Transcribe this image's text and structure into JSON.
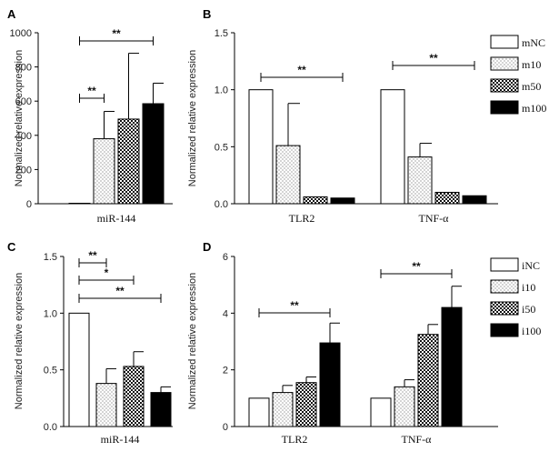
{
  "chart_data": [
    {
      "panel": "A",
      "type": "bar",
      "ylabel": "Normalized relative expression",
      "ylim": [
        0,
        1000
      ],
      "yticks": [
        "0",
        "200",
        "400",
        "600",
        "800",
        "1000"
      ],
      "groups": [
        "miR-144"
      ],
      "series": [
        {
          "name": "mNC",
          "values": [
            1
          ],
          "errors": [
            0
          ]
        },
        {
          "name": "m10",
          "values": [
            380
          ],
          "errors": [
            160
          ]
        },
        {
          "name": "m50",
          "values": [
            495
          ],
          "errors": [
            385
          ]
        },
        {
          "name": "m100",
          "values": [
            585
          ],
          "errors": [
            120
          ]
        }
      ],
      "significance": [
        {
          "label": "**",
          "from": "mNC",
          "to": "m10",
          "group": 0
        },
        {
          "label": "**",
          "from": "mNC",
          "to": "m100",
          "group": 0
        }
      ]
    },
    {
      "panel": "B",
      "type": "bar",
      "ylabel": "Normalized relative expression",
      "ylim": [
        0,
        1.5
      ],
      "yticks": [
        "0.0",
        "0.5",
        "1.0",
        "1.5"
      ],
      "groups": [
        "TLR2",
        "TNF-α"
      ],
      "series": [
        {
          "name": "mNC",
          "values": [
            1.0,
            1.0
          ],
          "errors": [
            0,
            0
          ]
        },
        {
          "name": "m10",
          "values": [
            0.51,
            0.41
          ],
          "errors": [
            0.37,
            0.12
          ]
        },
        {
          "name": "m50",
          "values": [
            0.06,
            0.1
          ],
          "errors": [
            0,
            0
          ]
        },
        {
          "name": "m100",
          "values": [
            0.05,
            0.07
          ],
          "errors": [
            0,
            0
          ]
        }
      ],
      "legend": [
        "mNC",
        "m10",
        "m50",
        "m100"
      ],
      "significance": [
        {
          "label": "**",
          "from": "mNC",
          "to": "m100",
          "group": 0
        },
        {
          "label": "**",
          "from": "mNC",
          "to": "m100",
          "group": 1
        }
      ]
    },
    {
      "panel": "C",
      "type": "bar",
      "ylabel": "Normalized relative expression",
      "ylim": [
        0,
        1.5
      ],
      "yticks": [
        "0.0",
        "0.5",
        "1.0",
        "1.5"
      ],
      "groups": [
        "miR-144"
      ],
      "series": [
        {
          "name": "iNC",
          "values": [
            1.0
          ],
          "errors": [
            0
          ]
        },
        {
          "name": "i10",
          "values": [
            0.38
          ],
          "errors": [
            0.13
          ]
        },
        {
          "name": "i50",
          "values": [
            0.53
          ],
          "errors": [
            0.13
          ]
        },
        {
          "name": "i100",
          "values": [
            0.3
          ],
          "errors": [
            0.05
          ]
        }
      ],
      "significance": [
        {
          "label": "**",
          "from": "iNC",
          "to": "i10",
          "group": 0
        },
        {
          "label": "*",
          "from": "iNC",
          "to": "i50",
          "group": 0
        },
        {
          "label": "**",
          "from": "iNC",
          "to": "i100",
          "group": 0
        }
      ]
    },
    {
      "panel": "D",
      "type": "bar",
      "ylabel": "Normalized relative expression",
      "ylim": [
        0,
        6
      ],
      "yticks": [
        "0",
        "2",
        "4",
        "6"
      ],
      "groups": [
        "TLR2",
        "TNF-α"
      ],
      "series": [
        {
          "name": "iNC",
          "values": [
            1.0,
            1.0
          ],
          "errors": [
            0,
            0
          ]
        },
        {
          "name": "i10",
          "values": [
            1.2,
            1.4
          ],
          "errors": [
            0.25,
            0.25
          ]
        },
        {
          "name": "i50",
          "values": [
            1.55,
            3.25
          ],
          "errors": [
            0.2,
            0.35
          ]
        },
        {
          "name": "i100",
          "values": [
            2.95,
            4.2
          ],
          "errors": [
            0.7,
            0.75
          ]
        }
      ],
      "legend": [
        "iNC",
        "i10",
        "i50",
        "i100"
      ],
      "significance": [
        {
          "label": "**",
          "from": "iNC",
          "to": "i100",
          "group": 0
        },
        {
          "label": "**",
          "from": "iNC",
          "to": "i100",
          "group": 1
        }
      ]
    }
  ]
}
